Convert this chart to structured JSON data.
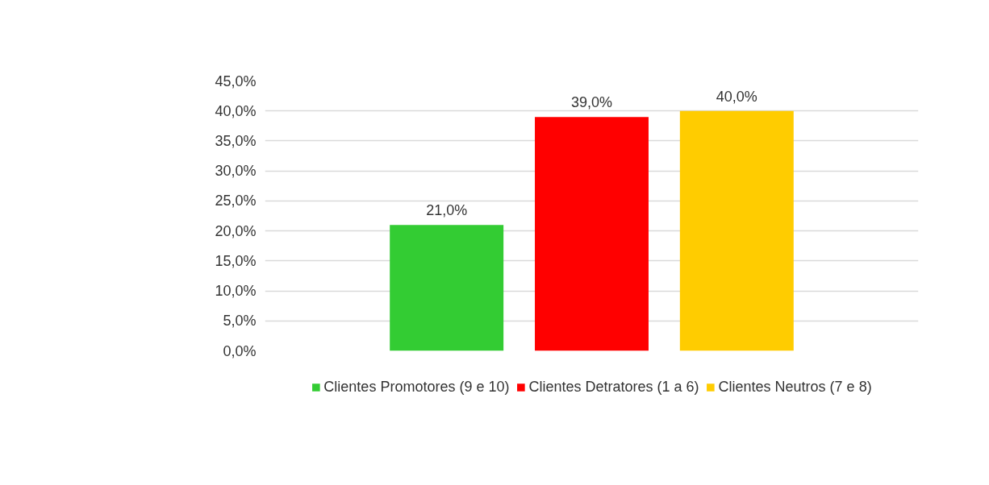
{
  "chart_data": {
    "type": "bar",
    "categories": [
      null
    ],
    "series": [
      {
        "name": "Clientes Promotores (9 e 10)",
        "color": "#33cc33",
        "values": [
          21.0
        ],
        "value_labels": [
          "21,0%"
        ]
      },
      {
        "name": "Clientes Detratores (1 a 6)",
        "color": "#ff0000",
        "values": [
          39.0
        ],
        "value_labels": [
          "39,0%"
        ]
      },
      {
        "name": "Clientes Neutros (7 e 8)",
        "color": "#ffcc00",
        "values": [
          40.0
        ],
        "value_labels": [
          "40,0%"
        ]
      }
    ],
    "ylim": [
      0,
      45
    ],
    "yticks": [
      {
        "value": 0,
        "label": "0,0%"
      },
      {
        "value": 5,
        "label": "5,0%"
      },
      {
        "value": 10,
        "label": "10,0%"
      },
      {
        "value": 15,
        "label": "15,0%"
      },
      {
        "value": 20,
        "label": "20,0%"
      },
      {
        "value": 25,
        "label": "25,0%"
      },
      {
        "value": 30,
        "label": "30,0%"
      },
      {
        "value": 35,
        "label": "35,0%"
      },
      {
        "value": 40,
        "label": "40,0%"
      },
      {
        "value": 45,
        "label": "45,0%"
      }
    ],
    "grid": "y",
    "legend": "bottom",
    "tick_labels": "y"
  }
}
